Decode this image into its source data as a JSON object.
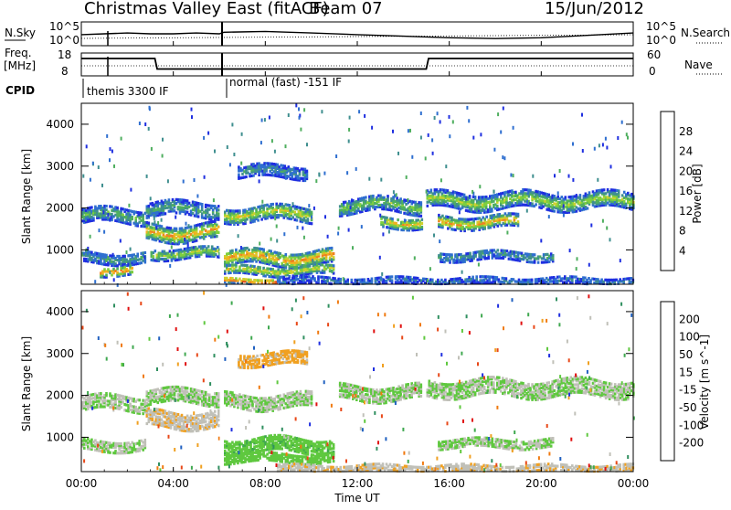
{
  "header": {
    "station": "Christmas Valley East (fitACF)",
    "beam": "Beam 07",
    "date": "15/Jun/2012"
  },
  "status": {
    "nsky_label": "N.Sky",
    "nsearch_label": "N.Search",
    "freq_label_1": "Freq.",
    "freq_label_2": "[MHz]",
    "nave_label": "Nave",
    "cpid_label": "CPID",
    "noise_ticks_left": [
      "10^5",
      "10^0"
    ],
    "noise_ticks_right": [
      "10^5",
      "10^0"
    ],
    "freq_ticks": [
      "18",
      "8"
    ],
    "nave_ticks": [
      "60",
      "0"
    ],
    "cpid_1": "themis 3300 IF",
    "cpid_2": "normal (fast) -151 IF"
  },
  "x_axis": {
    "label": "Time UT",
    "ticks": [
      "00:00",
      "04:00",
      "08:00",
      "12:00",
      "16:00",
      "20:00",
      "00:00"
    ]
  },
  "power_panel": {
    "ylabel": "Slant Range [km]",
    "yticks": [
      "1000",
      "2000",
      "3000",
      "4000"
    ],
    "cb_title": "Power [dB]",
    "cb_ticks": [
      "4",
      "8",
      "12",
      "16",
      "20",
      "24",
      "28"
    ],
    "cb_colors": [
      "#1f2fe0",
      "#2f6fd0",
      "#3f8f8f",
      "#4faf5f",
      "#7fcf3f",
      "#cfd02f",
      "#f0b020",
      "#f08020",
      "#e84818",
      "#e01010"
    ]
  },
  "velocity_panel": {
    "ylabel": "Slant Range [km]",
    "yticks": [
      "1000",
      "2000",
      "3000",
      "4000"
    ],
    "cb_title": "Velocity [m s^-1]",
    "cb_ticks": [
      "200",
      "100",
      "50",
      "15",
      "-15",
      "-50",
      "-100",
      "-200"
    ],
    "cb_colors": [
      "#1f2fe0",
      "#2060c0",
      "#2f8f5f",
      "#3fa84f",
      "#5fc83f",
      "#c0c0b8",
      "#f0a020",
      "#f07a10",
      "#e84818",
      "#e01010"
    ]
  },
  "chart_data": [
    {
      "type": "line",
      "title": "N.Sky / N.Search",
      "x": [
        0,
        1,
        2,
        3,
        4,
        5,
        6,
        6.2,
        8,
        10,
        12,
        14,
        16,
        18,
        20,
        22,
        24
      ],
      "series": [
        {
          "name": "N.Sky",
          "values": [
            3.4,
            3.5,
            3.6,
            3.5,
            3.5,
            3.6,
            3.5,
            3.7,
            3.8,
            3.6,
            3.4,
            3.2,
            3.0,
            2.9,
            3.0,
            3.3,
            3.6
          ]
        }
      ],
      "xlim": [
        0,
        24
      ]
    },
    {
      "type": "line",
      "title": "Freq / Nave",
      "x": [
        0,
        3.2,
        3.3,
        6.1,
        6.2,
        15.0,
        15.1,
        24
      ],
      "series": [
        {
          "name": "Freq.",
          "values": [
            15.6,
            15.6,
            11.0,
            11.0,
            11.0,
            11.0,
            15.6,
            15.6
          ]
        }
      ],
      "xlim": [
        0,
        24
      ]
    },
    {
      "type": "heatmap",
      "title": "Power [dB]",
      "xlabel": "Time UT",
      "ylabel": "Slant Range [km]",
      "xlim": [
        0,
        24
      ],
      "ylim": [
        180,
        4500
      ],
      "clim": [
        0,
        30
      ],
      "bands": [
        {
          "x0": 0.0,
          "x1": 2.8,
          "c": 1850,
          "w": 170,
          "v": 11
        },
        {
          "x0": 2.8,
          "x1": 6.0,
          "c": 2000,
          "w": 160,
          "v": 10
        },
        {
          "x0": 0.0,
          "x1": 2.8,
          "c": 850,
          "w": 130,
          "v": 9
        },
        {
          "x0": 0.8,
          "x1": 2.2,
          "c": 550,
          "w": 110,
          "v": 24
        },
        {
          "x0": 2.8,
          "x1": 6.0,
          "c": 1450,
          "w": 180,
          "v": 21
        },
        {
          "x0": 3.0,
          "x1": 6.0,
          "c": 950,
          "w": 120,
          "v": 15
        },
        {
          "x0": 6.2,
          "x1": 10.0,
          "c": 1900,
          "w": 170,
          "v": 17
        },
        {
          "x0": 6.8,
          "x1": 9.8,
          "c": 2900,
          "w": 140,
          "v": 8
        },
        {
          "x0": 6.2,
          "x1": 11.0,
          "c": 850,
          "w": 170,
          "v": 22
        },
        {
          "x0": 6.2,
          "x1": 11.0,
          "c": 550,
          "w": 110,
          "v": 18
        },
        {
          "x0": 6.2,
          "x1": 8.5,
          "c": 300,
          "w": 60,
          "v": 28
        },
        {
          "x0": 11.2,
          "x1": 14.8,
          "c": 2100,
          "w": 170,
          "v": 13
        },
        {
          "x0": 13.0,
          "x1": 14.8,
          "c": 1700,
          "w": 130,
          "v": 20
        },
        {
          "x0": 15.0,
          "x1": 24.0,
          "c": 2200,
          "w": 180,
          "v": 15
        },
        {
          "x0": 15.5,
          "x1": 19.0,
          "c": 1700,
          "w": 140,
          "v": 21
        },
        {
          "x0": 15.5,
          "x1": 20.5,
          "c": 900,
          "w": 110,
          "v": 9
        },
        {
          "x0": 8.5,
          "x1": 24.0,
          "c": 300,
          "w": 80,
          "v": 6
        }
      ]
    },
    {
      "type": "heatmap",
      "title": "Velocity [m s^-1]",
      "xlabel": "Time UT",
      "ylabel": "Slant Range [km]",
      "xlim": [
        0,
        24
      ],
      "ylim": [
        180,
        4500
      ],
      "clim": [
        -250,
        250
      ],
      "bands": [
        {
          "x0": 0.0,
          "x1": 2.8,
          "c": 1850,
          "w": 170,
          "v": 0
        },
        {
          "x0": 2.8,
          "x1": 6.0,
          "c": 2000,
          "w": 160,
          "v": 0
        },
        {
          "x0": 0.0,
          "x1": 2.8,
          "c": 850,
          "w": 130,
          "v": 0
        },
        {
          "x0": 2.8,
          "x1": 6.0,
          "c": 1450,
          "w": 180,
          "v": -40
        },
        {
          "x0": 6.2,
          "x1": 10.0,
          "c": 1900,
          "w": 170,
          "v": 0
        },
        {
          "x0": 6.8,
          "x1": 9.8,
          "c": 2900,
          "w": 140,
          "v": -60
        },
        {
          "x0": 6.2,
          "x1": 11.0,
          "c": 850,
          "w": 170,
          "v": 35
        },
        {
          "x0": 6.2,
          "x1": 11.0,
          "c": 550,
          "w": 110,
          "v": 30
        },
        {
          "x0": 11.2,
          "x1": 14.8,
          "c": 2100,
          "w": 170,
          "v": 0
        },
        {
          "x0": 15.0,
          "x1": 24.0,
          "c": 2200,
          "w": 180,
          "v": 0
        },
        {
          "x0": 15.5,
          "x1": 20.5,
          "c": 900,
          "w": 110,
          "v": 0
        },
        {
          "x0": 8.5,
          "x1": 24.0,
          "c": 300,
          "w": 80,
          "v": -40
        }
      ]
    }
  ]
}
